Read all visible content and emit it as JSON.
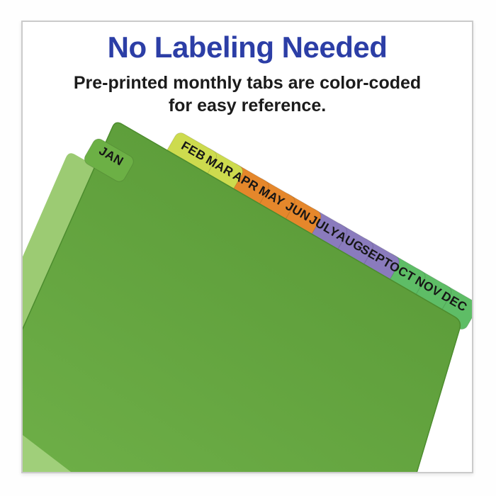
{
  "header": {
    "title": "No Labeling Needed",
    "subtitle_line1": "Pre-printed monthly tabs are color-coded",
    "subtitle_line2": "for easy reference."
  },
  "illustration": {
    "description": "stack of green index dividers fanned at an angle with twelve pre-printed month tabs",
    "tabs": [
      {
        "label": "JAN",
        "group": "green_sheet"
      },
      {
        "label": "FEB",
        "group": "chartreuse"
      },
      {
        "label": "MAR",
        "group": "chartreuse"
      },
      {
        "label": "APR",
        "group": "orange"
      },
      {
        "label": "MAY",
        "group": "orange"
      },
      {
        "label": "JUN",
        "group": "orange"
      },
      {
        "label": "JULY",
        "group": "purple"
      },
      {
        "label": "AUG",
        "group": "purple"
      },
      {
        "label": "SEPT",
        "group": "purple"
      },
      {
        "label": "OCT",
        "group": "green"
      },
      {
        "label": "NOV",
        "group": "green"
      },
      {
        "label": "DEC",
        "group": "green"
      }
    ]
  },
  "colors": {
    "title": "#2c3ea6",
    "subtitle": "#1b1b1b",
    "card_border": "#cbcbcb",
    "tab_label": "#161616",
    "front_sheet_top": "#589836",
    "front_sheet_bottom": "#71b24a",
    "front_sheet_edge": "#4c8c2e",
    "back_sheet": "#9ccb73",
    "corner_sheet": "#a0cf7a",
    "tab_groups": {
      "green_sheet": "#6cb045",
      "chartreuse": "#cddb4e",
      "orange": "#e5872b",
      "purple": "#8a7bbd",
      "green": "#5ebd66"
    }
  }
}
